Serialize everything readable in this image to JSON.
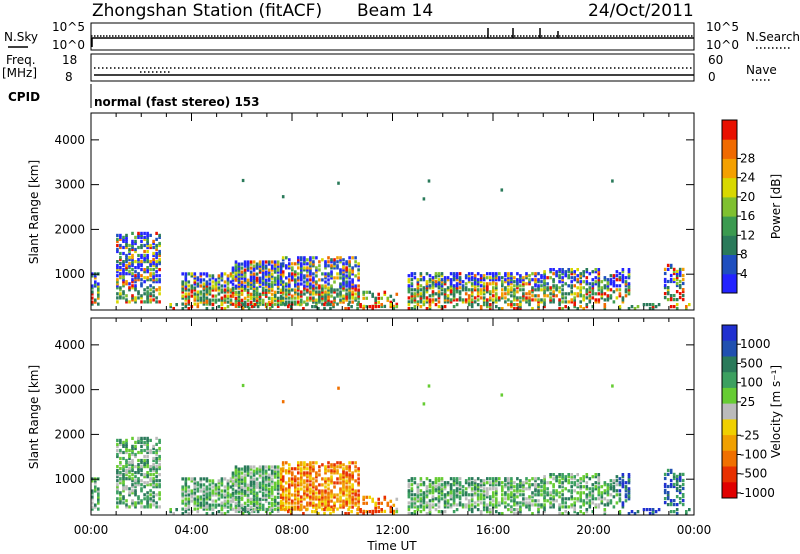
{
  "header": {
    "station_title": "Zhongshan Station (fitACF)",
    "beam": "Beam 14",
    "date": "24/Oct/2011"
  },
  "top_panels": {
    "nsky": {
      "label": "N.Sky",
      "scale_high": "10^5",
      "scale_low": "10^0"
    },
    "nsearch": {
      "label": "N.Search",
      "scale_high": "10^5",
      "scale_low": "10^0"
    },
    "freq": {
      "label_line1": "Freq.",
      "label_line2": "[MHz]",
      "high": "18",
      "low": "8"
    },
    "nave": {
      "label": "Nave",
      "high": "60",
      "low": "0"
    },
    "cpid": {
      "label": "CPID",
      "mode": "normal (fast stereo) 153"
    }
  },
  "chart_data": [
    {
      "type": "heatmap",
      "name": "power",
      "xlabel": "Time UT",
      "ylabel": "Slant Range [km]",
      "x_ticks": [
        "00:00",
        "04:00",
        "08:00",
        "12:00",
        "16:00",
        "20:00",
        "00:00"
      ],
      "x_range_hours": [
        0,
        24
      ],
      "y_ticks": [
        1000,
        2000,
        3000,
        4000
      ],
      "ylim": [
        200,
        4600
      ],
      "colorbar": {
        "label": "Power [dB]",
        "ticks": [
          "4",
          "8",
          "12",
          "16",
          "20",
          "24",
          "28"
        ],
        "colors": [
          "#2323ff",
          "#1f4fbf",
          "#2a7a5a",
          "#3b9a50",
          "#7fc030",
          "#d8d800",
          "#f4a000",
          "#f06a00",
          "#e81000"
        ]
      }
    },
    {
      "type": "heatmap",
      "name": "velocity",
      "xlabel": "Time UT",
      "ylabel": "Slant Range [km]",
      "x_ticks": [
        "00:00",
        "04:00",
        "08:00",
        "12:00",
        "16:00",
        "20:00",
        "00:00"
      ],
      "x_range_hours": [
        0,
        24
      ],
      "y_ticks": [
        1000,
        2000,
        3000,
        4000
      ],
      "ylim": [
        200,
        4600
      ],
      "colorbar": {
        "label": "Velocity [m s⁻¹]",
        "ticks": [
          "1000",
          "500",
          "100",
          "25",
          "-25",
          "-100",
          "-500",
          "-1000"
        ],
        "colors": [
          "#2030d0",
          "#2050b0",
          "#2a7a5a",
          "#3ca060",
          "#66cc33",
          "#bbbbbb",
          "#f0d000",
          "#f0a000",
          "#f07000",
          "#e83000",
          "#e00000"
        ]
      }
    }
  ]
}
